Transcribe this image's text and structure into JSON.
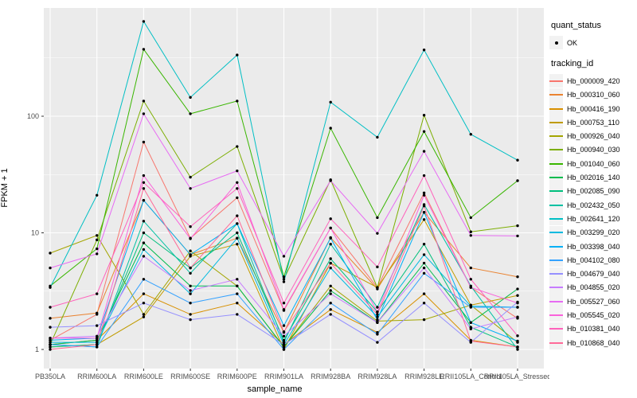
{
  "chart_data": {
    "type": "line",
    "title": "",
    "xlabel": "sample_name",
    "ylabel": "FPKM + 1",
    "y_scale": "log10",
    "y_ticks": [
      1,
      10,
      100
    ],
    "y_minor_ticks": [
      3.162,
      31.62,
      316.2
    ],
    "ylim": [
      1,
      850
    ],
    "grid": true,
    "legend_position": "right",
    "panel_bg": "#EBEBEB",
    "grid_color": "#FFFFFF",
    "tick_color": "#333333",
    "tick_label_color": "#4D4D4D",
    "marker_color": "#000000",
    "x_categories": [
      "PB350LA",
      "RRIM600LA",
      "RRIM600LE",
      "RRIM600SE",
      "RRIM600PE",
      "RRIM901LA",
      "RRIM928BA",
      "RRIM928LA",
      "RRIM928LE",
      "RRII105LA_Control",
      "RRII105LA_Stressed"
    ],
    "series": [
      {
        "name": "Hb_000009_420",
        "color": "#F8766D",
        "values": [
          1.2,
          2.0,
          60,
          9.0,
          20,
          2.16,
          11,
          3.4,
          22,
          3.4,
          1.85
        ]
      },
      {
        "name": "Hb_000310_060",
        "color": "#EA8331",
        "values": [
          1.85,
          2.05,
          19,
          6.5,
          9.0,
          1.4,
          9.1,
          3.3,
          15,
          5.0,
          4.2
        ]
      },
      {
        "name": "Hb_000416_190",
        "color": "#D89000",
        "values": [
          1.1,
          1.2,
          3.0,
          2.0,
          2.5,
          1.1,
          2.2,
          1.4,
          3.0,
          1.2,
          1.05
        ]
      },
      {
        "name": "Hb_000753_110",
        "color": "#C09B00",
        "values": [
          1.05,
          1.1,
          1.9,
          6.3,
          8.0,
          1.0,
          5.5,
          3.4,
          13,
          2.4,
          2.9
        ]
      },
      {
        "name": "Hb_000926_040",
        "color": "#A3A500",
        "values": [
          6.7,
          9.5,
          2.0,
          7.0,
          3.5,
          1.05,
          3.5,
          1.75,
          1.8,
          2.4,
          1.15
        ]
      },
      {
        "name": "Hb_000940_030",
        "color": "#7CAE00",
        "values": [
          1.1,
          8.7,
          135,
          30,
          55,
          4.0,
          28.5,
          3.4,
          102,
          10.2,
          11.5
        ]
      },
      {
        "name": "Hb_001040_060",
        "color": "#39B600",
        "values": [
          3.5,
          7.3,
          375,
          105,
          135,
          4.2,
          79,
          13.5,
          74,
          13.5,
          28
        ]
      },
      {
        "name": "Hb_002016_140",
        "color": "#00BB4E",
        "values": [
          1.1,
          1.2,
          8.2,
          3.5,
          3.5,
          1.05,
          3.2,
          1.7,
          5.5,
          1.7,
          3.3
        ]
      },
      {
        "name": "Hb_002085_090",
        "color": "#00BF7D",
        "values": [
          1.05,
          1.1,
          10,
          5.0,
          10,
          1.2,
          6.0,
          2.1,
          8.0,
          1.55,
          1.05
        ]
      },
      {
        "name": "Hb_002432_050",
        "color": "#00C1A3",
        "values": [
          1.1,
          1.05,
          12.6,
          4.5,
          12,
          1.15,
          8.0,
          2.3,
          17.5,
          3.5,
          1.0
        ]
      },
      {
        "name": "Hb_002641_120",
        "color": "#00BFC4",
        "values": [
          3.4,
          21,
          650,
          145,
          335,
          3.8,
          132,
          66,
          370,
          70,
          42
        ]
      },
      {
        "name": "Hb_003299_020",
        "color": "#00BAE0",
        "values": [
          1.15,
          1.15,
          7.2,
          3.0,
          9.0,
          1.1,
          5.0,
          1.9,
          6.5,
          2.35,
          2.3
        ]
      },
      {
        "name": "Hb_003398_040",
        "color": "#00B0F6",
        "values": [
          1.2,
          1.25,
          19,
          6.5,
          12,
          1.6,
          9.0,
          1.8,
          15,
          1.7,
          1.18
        ]
      },
      {
        "name": "Hb_004102_080",
        "color": "#35A2FF",
        "values": [
          1.1,
          1.05,
          4.0,
          2.5,
          3.0,
          1.0,
          2.5,
          1.35,
          4.5,
          2.3,
          2.3
        ]
      },
      {
        "name": "Hb_004679_040",
        "color": "#9590FF",
        "values": [
          1.55,
          1.6,
          2.5,
          1.8,
          2.0,
          1.1,
          2.0,
          1.15,
          2.5,
          1.15,
          2.55
        ]
      },
      {
        "name": "Hb_004855_020",
        "color": "#C77CFF",
        "values": [
          1.25,
          1.3,
          6.3,
          3.2,
          4.0,
          1.3,
          3.0,
          1.7,
          5.0,
          1.5,
          1.9
        ]
      },
      {
        "name": "Hb_005527_060",
        "color": "#E76BF3",
        "values": [
          5.0,
          6.6,
          105,
          24,
          34,
          6.3,
          28,
          9.9,
          50,
          9.5,
          9.4
        ]
      },
      {
        "name": "Hb_005545_020",
        "color": "#FA62DB",
        "values": [
          1.25,
          1.25,
          31,
          8.9,
          27,
          2.2,
          11,
          2.1,
          21,
          3.4,
          2.5
        ]
      },
      {
        "name": "Hb_010381_040",
        "color": "#FF62BC",
        "values": [
          2.3,
          3.0,
          27,
          11.3,
          24,
          2.5,
          13.2,
          5.1,
          31,
          4.0,
          1.31
        ]
      },
      {
        "name": "Hb_010868_040",
        "color": "#FF6A98",
        "values": [
          1.0,
          1.1,
          24,
          5.0,
          14,
          1.42,
          5.5,
          2.0,
          17,
          1.18,
          1.05
        ]
      }
    ]
  },
  "legend": {
    "quant_status_title": "quant_status",
    "quant_status_items": [
      {
        "label": "OK",
        "marker": "point"
      }
    ],
    "tracking_title": "tracking_id"
  }
}
